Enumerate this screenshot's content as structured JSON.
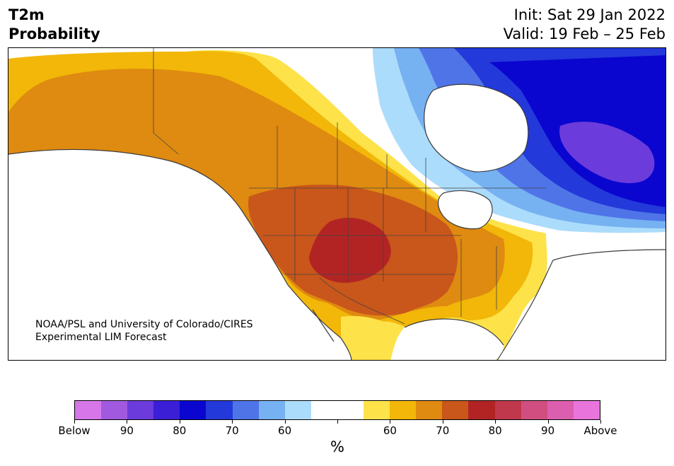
{
  "title": {
    "line1": "T2m",
    "line2": "Probability"
  },
  "dates": {
    "init": "Init: Sat 29 Jan 2022",
    "valid": "Valid: 19 Feb – 25 Feb"
  },
  "credit": {
    "line1": "NOAA/PSL and University of Colorado/CIRES",
    "line2": "Experimental LIM Forecast"
  },
  "colorbar": {
    "unit": "%",
    "colors": [
      "#d676e8",
      "#a15adf",
      "#6c3bdb",
      "#3a1fd6",
      "#0a06cf",
      "#2439d9",
      "#4f74e8",
      "#76b1f2",
      "#acdcfb",
      "#ffffff",
      "#ffffff",
      "#fde24a",
      "#f2b708",
      "#df8a10",
      "#c9561a",
      "#b22424",
      "#c0384b",
      "#d04f80",
      "#db5fae",
      "#e874dc"
    ],
    "tick_labels": [
      "Below",
      "90",
      "80",
      "70",
      "60",
      "",
      "60",
      "70",
      "80",
      "90",
      "Above"
    ]
  },
  "map_colors": {
    "above_60": "#fde24a",
    "above_65": "#f2b708",
    "above_70": "#df8a10",
    "above_75": "#c9561a",
    "above_80": "#b22424",
    "below_60": "#acdcfb",
    "below_65": "#76b1f2",
    "below_70": "#4f74e8",
    "below_75": "#2439d9",
    "below_80": "#0a06cf",
    "below_85": "#3a1fd6",
    "below_90": "#6c3bdb"
  }
}
